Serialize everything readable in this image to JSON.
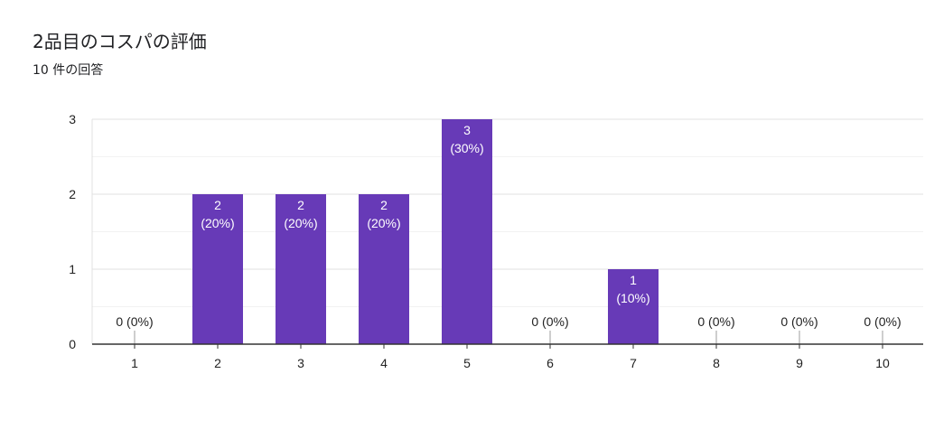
{
  "header": {
    "title": "2品目のコスパの評価",
    "subtitle": "10 件の回答"
  },
  "colors": {
    "bar": "#673ab7",
    "grid_major": "#e0e0e0",
    "grid_minor": "#f2f2f2",
    "axis": "#333333",
    "text": "#222222",
    "bar_label": "#ffffff"
  },
  "chart_data": {
    "type": "bar",
    "title": "",
    "xlabel": "",
    "ylabel": "",
    "categories": [
      "1",
      "2",
      "3",
      "4",
      "5",
      "6",
      "7",
      "8",
      "9",
      "10"
    ],
    "values": [
      0,
      2,
      2,
      2,
      3,
      0,
      1,
      0,
      0,
      0
    ],
    "percent_labels": [
      "0%",
      "20%",
      "20%",
      "20%",
      "30%",
      "0%",
      "10%",
      "0%",
      "0%",
      "0%"
    ],
    "ylim": [
      0,
      3
    ],
    "yticks": [
      0,
      1,
      2,
      3
    ],
    "grid": true,
    "legend": "none"
  }
}
